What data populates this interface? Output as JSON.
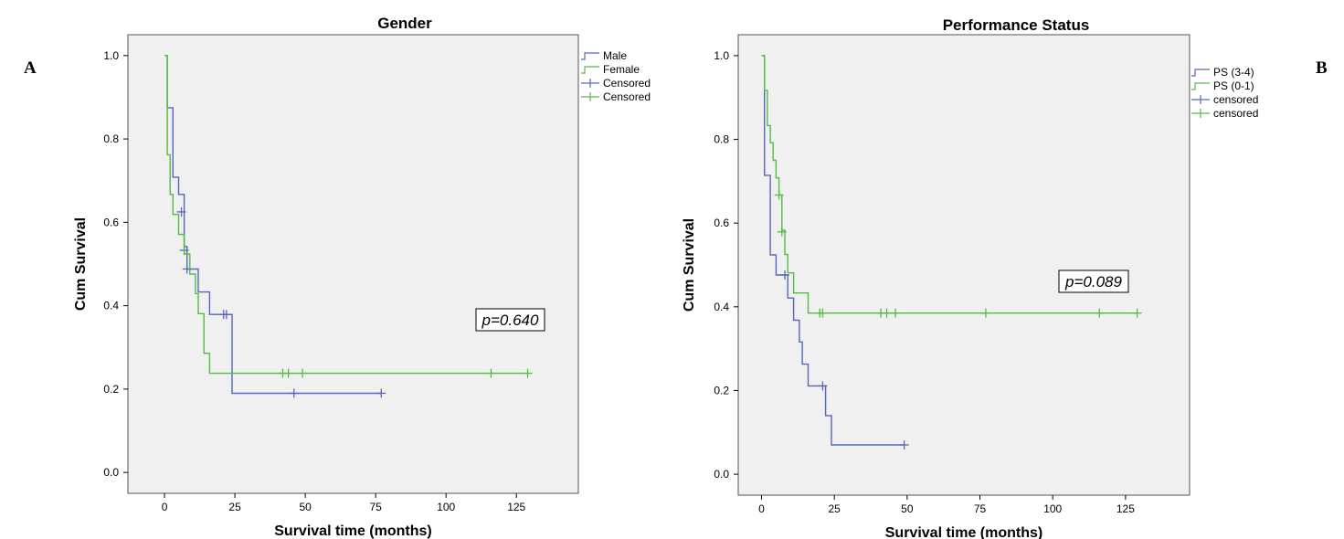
{
  "panel_letters": {
    "a": "A",
    "b": "B"
  },
  "chart_data": [
    {
      "type": "line",
      "title": "Gender",
      "xlabel": "Survival time (months)",
      "ylabel": "Cum Survival",
      "xlim": [
        -13,
        147
      ],
      "ylim": [
        -0.05,
        1.05
      ],
      "xticks": [
        0,
        25,
        50,
        75,
        100,
        125
      ],
      "yticks": [
        0.0,
        0.2,
        0.4,
        0.6,
        0.8,
        1.0
      ],
      "ytick_labels": [
        "0.0",
        "0.2",
        "0.4",
        "0.6",
        "0.8",
        "1.0"
      ],
      "grid": false,
      "legend_position": "right",
      "legend": [
        "Male",
        "Female",
        "Censored",
        "Censored"
      ],
      "annotation": "p=0.640",
      "series": [
        {
          "name": "Male",
          "color": "#5a66b8",
          "steps": [
            [
              0,
              1.0
            ],
            [
              1,
              1.0
            ],
            [
              1,
              0.875
            ],
            [
              3,
              0.875
            ],
            [
              3,
              0.708
            ],
            [
              5,
              0.708
            ],
            [
              5,
              0.667
            ],
            [
              7,
              0.667
            ],
            [
              7,
              0.542
            ],
            [
              8,
              0.542
            ],
            [
              8,
              0.488
            ],
            [
              12,
              0.488
            ],
            [
              12,
              0.433
            ],
            [
              16,
              0.433
            ],
            [
              16,
              0.379
            ],
            [
              24,
              0.379
            ],
            [
              24,
              0.284
            ],
            [
              24,
              0.19
            ],
            [
              77,
              0.19
            ]
          ],
          "censored": [
            [
              6,
              0.625
            ],
            [
              7,
              0.533
            ],
            [
              8,
              0.488
            ],
            [
              21,
              0.379
            ],
            [
              22,
              0.379
            ],
            [
              46,
              0.19
            ],
            [
              77,
              0.19
            ]
          ]
        },
        {
          "name": "Female",
          "color": "#55bb44",
          "steps": [
            [
              0,
              1.0
            ],
            [
              1,
              1.0
            ],
            [
              1,
              0.762
            ],
            [
              2,
              0.762
            ],
            [
              2,
              0.667
            ],
            [
              3,
              0.667
            ],
            [
              3,
              0.619
            ],
            [
              5,
              0.619
            ],
            [
              5,
              0.571
            ],
            [
              7,
              0.571
            ],
            [
              7,
              0.524
            ],
            [
              9,
              0.524
            ],
            [
              9,
              0.476
            ],
            [
              11,
              0.476
            ],
            [
              11,
              0.429
            ],
            [
              12,
              0.429
            ],
            [
              12,
              0.381
            ],
            [
              14,
              0.381
            ],
            [
              14,
              0.286
            ],
            [
              16,
              0.286
            ],
            [
              16,
              0.238
            ],
            [
              129,
              0.238
            ]
          ],
          "censored": [
            [
              42,
              0.238
            ],
            [
              44,
              0.238
            ],
            [
              49,
              0.238
            ],
            [
              116,
              0.238
            ],
            [
              129,
              0.238
            ]
          ]
        }
      ]
    },
    {
      "type": "line",
      "title": "Performance Status",
      "xlabel": "Survival time (months)",
      "ylabel": "Cum Survival",
      "xlim": [
        -8,
        147
      ],
      "ylim": [
        -0.05,
        1.05
      ],
      "xticks": [
        0,
        25,
        50,
        75,
        100,
        125
      ],
      "yticks": [
        0.0,
        0.2,
        0.4,
        0.6,
        0.8,
        1.0
      ],
      "ytick_labels": [
        "0.0",
        "0.2",
        "0.4",
        "0.6",
        "0.8",
        "1.0"
      ],
      "grid": false,
      "legend_position": "right",
      "legend": [
        "PS (3-4)",
        "PS (0-1)",
        "censored",
        "censored"
      ],
      "annotation": "p=0.089",
      "series": [
        {
          "name": "PS (3-4)",
          "color": "#5a66b8",
          "steps": [
            [
              0,
              1.0
            ],
            [
              1,
              1.0
            ],
            [
              1,
              0.714
            ],
            [
              3,
              0.714
            ],
            [
              3,
              0.524
            ],
            [
              5,
              0.524
            ],
            [
              5,
              0.476
            ],
            [
              9,
              0.476
            ],
            [
              9,
              0.421
            ],
            [
              11,
              0.421
            ],
            [
              11,
              0.368
            ],
            [
              13,
              0.368
            ],
            [
              13,
              0.316
            ],
            [
              14,
              0.316
            ],
            [
              14,
              0.263
            ],
            [
              16,
              0.263
            ],
            [
              16,
              0.211
            ],
            [
              22,
              0.211
            ],
            [
              22,
              0.14
            ],
            [
              24,
              0.14
            ],
            [
              24,
              0.07
            ],
            [
              49,
              0.07
            ]
          ],
          "censored": [
            [
              8,
              0.476
            ],
            [
              21,
              0.211
            ],
            [
              49,
              0.07
            ]
          ]
        },
        {
          "name": "PS (0-1)",
          "color": "#55bb44",
          "steps": [
            [
              0,
              1.0
            ],
            [
              1,
              1.0
            ],
            [
              1,
              0.917
            ],
            [
              2,
              0.917
            ],
            [
              2,
              0.833
            ],
            [
              3,
              0.833
            ],
            [
              3,
              0.792
            ],
            [
              4,
              0.792
            ],
            [
              4,
              0.75
            ],
            [
              5,
              0.75
            ],
            [
              5,
              0.708
            ],
            [
              6,
              0.708
            ],
            [
              6,
              0.667
            ],
            [
              7,
              0.667
            ],
            [
              7,
              0.583
            ],
            [
              8,
              0.583
            ],
            [
              8,
              0.525
            ],
            [
              9,
              0.525
            ],
            [
              9,
              0.481
            ],
            [
              11,
              0.481
            ],
            [
              11,
              0.433
            ],
            [
              16,
              0.433
            ],
            [
              16,
              0.385
            ],
            [
              129,
              0.385
            ]
          ],
          "censored": [
            [
              6,
              0.667
            ],
            [
              7,
              0.579
            ],
            [
              20,
              0.385
            ],
            [
              21,
              0.385
            ],
            [
              41,
              0.385
            ],
            [
              43,
              0.385
            ],
            [
              46,
              0.385
            ],
            [
              77,
              0.385
            ],
            [
              116,
              0.385
            ],
            [
              129,
              0.385
            ]
          ]
        }
      ]
    }
  ]
}
